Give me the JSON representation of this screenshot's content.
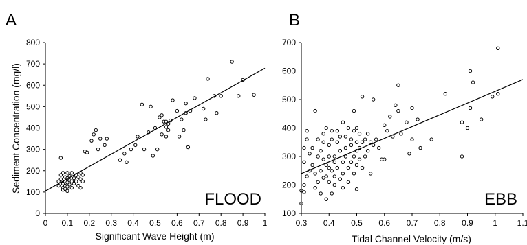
{
  "chart_data": [
    {
      "panel": "A",
      "type": "scatter",
      "inset_label": "FLOOD",
      "xlabel": "Significant Wave Height (m)",
      "ylabel": "Sediment Concentration (mg/l)",
      "xlim": [
        0,
        1
      ],
      "ylim": [
        0,
        800
      ],
      "xticks": [
        0,
        0.1,
        0.2,
        0.3,
        0.4,
        0.5,
        0.6,
        0.7,
        0.8,
        0.9,
        1
      ],
      "yticks": [
        0,
        100,
        200,
        300,
        400,
        500,
        600,
        700,
        800
      ],
      "points": [
        [
          0.06,
          150
        ],
        [
          0.06,
          130
        ],
        [
          0.07,
          260
        ],
        [
          0.07,
          180
        ],
        [
          0.07,
          160
        ],
        [
          0.08,
          190
        ],
        [
          0.08,
          140
        ],
        [
          0.08,
          120
        ],
        [
          0.08,
          110
        ],
        [
          0.09,
          170
        ],
        [
          0.09,
          150
        ],
        [
          0.09,
          130
        ],
        [
          0.09,
          115
        ],
        [
          0.1,
          190
        ],
        [
          0.1,
          165
        ],
        [
          0.1,
          145
        ],
        [
          0.1,
          125
        ],
        [
          0.1,
          105
        ],
        [
          0.11,
          175
        ],
        [
          0.11,
          155
        ],
        [
          0.11,
          135
        ],
        [
          0.12,
          190
        ],
        [
          0.12,
          150
        ],
        [
          0.12,
          120
        ],
        [
          0.13,
          165
        ],
        [
          0.13,
          140
        ],
        [
          0.14,
          180
        ],
        [
          0.14,
          150
        ],
        [
          0.15,
          170
        ],
        [
          0.15,
          130
        ],
        [
          0.16,
          190
        ],
        [
          0.16,
          160
        ],
        [
          0.16,
          120
        ],
        [
          0.17,
          180
        ],
        [
          0.17,
          150
        ],
        [
          0.18,
          290
        ],
        [
          0.19,
          285
        ],
        [
          0.21,
          340
        ],
        [
          0.22,
          370
        ],
        [
          0.23,
          390
        ],
        [
          0.24,
          300
        ],
        [
          0.25,
          350
        ],
        [
          0.27,
          320
        ],
        [
          0.28,
          350
        ],
        [
          0.34,
          250
        ],
        [
          0.36,
          280
        ],
        [
          0.37,
          240
        ],
        [
          0.39,
          300
        ],
        [
          0.41,
          320
        ],
        [
          0.42,
          360
        ],
        [
          0.44,
          510
        ],
        [
          0.45,
          300
        ],
        [
          0.47,
          380
        ],
        [
          0.48,
          500
        ],
        [
          0.49,
          270
        ],
        [
          0.5,
          400
        ],
        [
          0.51,
          300
        ],
        [
          0.52,
          450
        ],
        [
          0.53,
          460
        ],
        [
          0.53,
          370
        ],
        [
          0.54,
          430
        ],
        [
          0.55,
          430
        ],
        [
          0.55,
          405
        ],
        [
          0.55,
          360
        ],
        [
          0.56,
          420
        ],
        [
          0.56,
          390
        ],
        [
          0.57,
          435
        ],
        [
          0.58,
          530
        ],
        [
          0.6,
          480
        ],
        [
          0.61,
          360
        ],
        [
          0.62,
          440
        ],
        [
          0.63,
          390
        ],
        [
          0.64,
          515
        ],
        [
          0.64,
          470
        ],
        [
          0.65,
          310
        ],
        [
          0.66,
          480
        ],
        [
          0.68,
          540
        ],
        [
          0.72,
          490
        ],
        [
          0.73,
          440
        ],
        [
          0.74,
          630
        ],
        [
          0.77,
          550
        ],
        [
          0.78,
          470
        ],
        [
          0.8,
          550
        ],
        [
          0.85,
          710
        ],
        [
          0.88,
          550
        ],
        [
          0.9,
          625
        ],
        [
          0.95,
          555
        ]
      ],
      "trendline": {
        "x": [
          0,
          1
        ],
        "y": [
          105,
          680
        ]
      }
    },
    {
      "panel": "B",
      "type": "scatter",
      "inset_label": "EBB",
      "xlabel": "Tidal Channel Velocity (m/s)",
      "ylabel": "",
      "xlim": [
        0.3,
        1.1
      ],
      "ylim": [
        100,
        700
      ],
      "xticks": [
        0.3,
        0.4,
        0.5,
        0.6,
        0.7,
        0.8,
        0.9,
        1,
        1.1
      ],
      "yticks": [
        100,
        200,
        300,
        400,
        500,
        600,
        700
      ],
      "points": [
        [
          0.3,
          180
        ],
        [
          0.3,
          135
        ],
        [
          0.31,
          200
        ],
        [
          0.31,
          175
        ],
        [
          0.31,
          280
        ],
        [
          0.31,
          330
        ],
        [
          0.32,
          390
        ],
        [
          0.32,
          230
        ],
        [
          0.32,
          360
        ],
        [
          0.33,
          250
        ],
        [
          0.33,
          310
        ],
        [
          0.34,
          270
        ],
        [
          0.34,
          330
        ],
        [
          0.35,
          460
        ],
        [
          0.35,
          240
        ],
        [
          0.35,
          190
        ],
        [
          0.36,
          360
        ],
        [
          0.36,
          300
        ],
        [
          0.36,
          210
        ],
        [
          0.37,
          250
        ],
        [
          0.37,
          320
        ],
        [
          0.37,
          170
        ],
        [
          0.38,
          290
        ],
        [
          0.38,
          380
        ],
        [
          0.38,
          350
        ],
        [
          0.38,
          225
        ],
        [
          0.39,
          230
        ],
        [
          0.39,
          270
        ],
        [
          0.39,
          400
        ],
        [
          0.39,
          150
        ],
        [
          0.4,
          340
        ],
        [
          0.4,
          300
        ],
        [
          0.4,
          260
        ],
        [
          0.4,
          210
        ],
        [
          0.41,
          390
        ],
        [
          0.41,
          250
        ],
        [
          0.41,
          170
        ],
        [
          0.41,
          360
        ],
        [
          0.42,
          230
        ],
        [
          0.42,
          300
        ],
        [
          0.42,
          280
        ],
        [
          0.42,
          200
        ],
        [
          0.43,
          390
        ],
        [
          0.43,
          350
        ],
        [
          0.43,
          260
        ],
        [
          0.44,
          320
        ],
        [
          0.44,
          220
        ],
        [
          0.44,
          370
        ],
        [
          0.45,
          420
        ],
        [
          0.45,
          280
        ],
        [
          0.45,
          240
        ],
        [
          0.45,
          190
        ],
        [
          0.46,
          330
        ],
        [
          0.46,
          370
        ],
        [
          0.46,
          300
        ],
        [
          0.47,
          260
        ],
        [
          0.47,
          210
        ],
        [
          0.47,
          400
        ],
        [
          0.48,
          340
        ],
        [
          0.48,
          280
        ],
        [
          0.48,
          360
        ],
        [
          0.49,
          300
        ],
        [
          0.49,
          240
        ],
        [
          0.49,
          390
        ],
        [
          0.49,
          460
        ],
        [
          0.5,
          350
        ],
        [
          0.5,
          320
        ],
        [
          0.5,
          270
        ],
        [
          0.5,
          400
        ],
        [
          0.5,
          185
        ],
        [
          0.51,
          290
        ],
        [
          0.51,
          380
        ],
        [
          0.51,
          330
        ],
        [
          0.52,
          510
        ],
        [
          0.52,
          260
        ],
        [
          0.52,
          350
        ],
        [
          0.53,
          360
        ],
        [
          0.53,
          300
        ],
        [
          0.54,
          320
        ],
        [
          0.54,
          380
        ],
        [
          0.55,
          350
        ],
        [
          0.55,
          240
        ],
        [
          0.56,
          340
        ],
        [
          0.56,
          500
        ],
        [
          0.57,
          360
        ],
        [
          0.58,
          330
        ],
        [
          0.59,
          290
        ],
        [
          0.6,
          290
        ],
        [
          0.6,
          410
        ],
        [
          0.61,
          390
        ],
        [
          0.62,
          440
        ],
        [
          0.63,
          370
        ],
        [
          0.64,
          480
        ],
        [
          0.65,
          460
        ],
        [
          0.65,
          550
        ],
        [
          0.66,
          380
        ],
        [
          0.68,
          420
        ],
        [
          0.69,
          310
        ],
        [
          0.7,
          360
        ],
        [
          0.7,
          470
        ],
        [
          0.72,
          430
        ],
        [
          0.73,
          330
        ],
        [
          0.77,
          360
        ],
        [
          0.82,
          520
        ],
        [
          0.88,
          300
        ],
        [
          0.88,
          420
        ],
        [
          0.9,
          400
        ],
        [
          0.91,
          470
        ],
        [
          0.91,
          600
        ],
        [
          0.92,
          560
        ],
        [
          0.95,
          430
        ],
        [
          0.99,
          510
        ],
        [
          1.01,
          520
        ],
        [
          1.01,
          680
        ]
      ],
      "trendline": {
        "x": [
          0.3,
          1.1
        ],
        "y": [
          240,
          570
        ]
      }
    }
  ]
}
